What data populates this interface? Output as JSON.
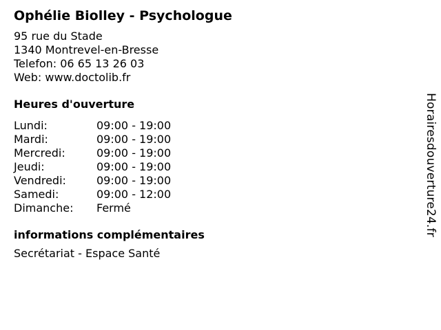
{
  "business": {
    "title": "Ophélie Biolley - Psychologue",
    "street": "95 rue du Stade",
    "city": "1340 Montrevel-en-Bresse",
    "phone_line": "Telefon: 06 65 13 26 03",
    "web_line": "Web: www.doctolib.fr"
  },
  "hours": {
    "heading": "Heures d'ouverture",
    "rows": [
      {
        "day": "Lundi:",
        "time": "09:00 - 19:00"
      },
      {
        "day": "Mardi:",
        "time": "09:00 - 19:00"
      },
      {
        "day": "Mercredi:",
        "time": "09:00 - 19:00"
      },
      {
        "day": "Jeudi:",
        "time": "09:00 - 19:00"
      },
      {
        "day": "Vendredi:",
        "time": "09:00 - 19:00"
      },
      {
        "day": "Samedi:",
        "time": "09:00 - 12:00"
      },
      {
        "day": "Dimanche:",
        "time": "Fermé"
      }
    ]
  },
  "extra": {
    "heading": "informations complémentaires",
    "text": "Secrétariat - Espace Santé"
  },
  "watermark": {
    "text": "Horairesdouverture24.fr"
  },
  "colors": {
    "text": "#000000",
    "background": "#ffffff"
  }
}
